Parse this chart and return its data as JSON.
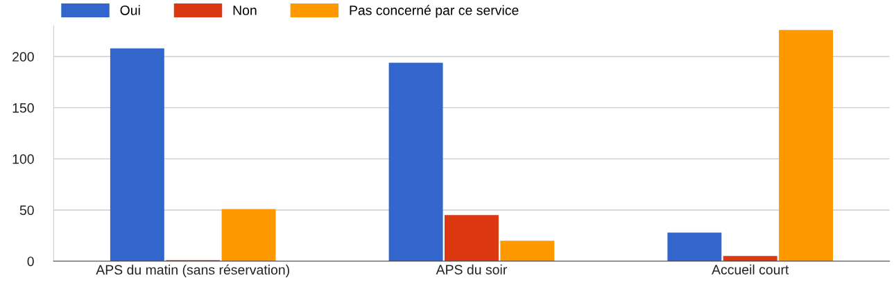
{
  "chart_data": {
    "type": "bar",
    "categories": [
      "APS du matin (sans réservation)",
      "APS du soir",
      "Accueil court"
    ],
    "series": [
      {
        "name": "Oui",
        "color": "#3366cc",
        "values": [
          208,
          194,
          28
        ]
      },
      {
        "name": "Non",
        "color": "#dc3912",
        "values": [
          1,
          45,
          5
        ]
      },
      {
        "name": "Pas concerné par ce service",
        "color": "#ff9900",
        "values": [
          51,
          20,
          226
        ]
      }
    ],
    "ylim": [
      0,
      230
    ],
    "yticks": [
      0,
      50,
      100,
      150,
      200
    ],
    "grid": "y",
    "legend": "top left"
  }
}
